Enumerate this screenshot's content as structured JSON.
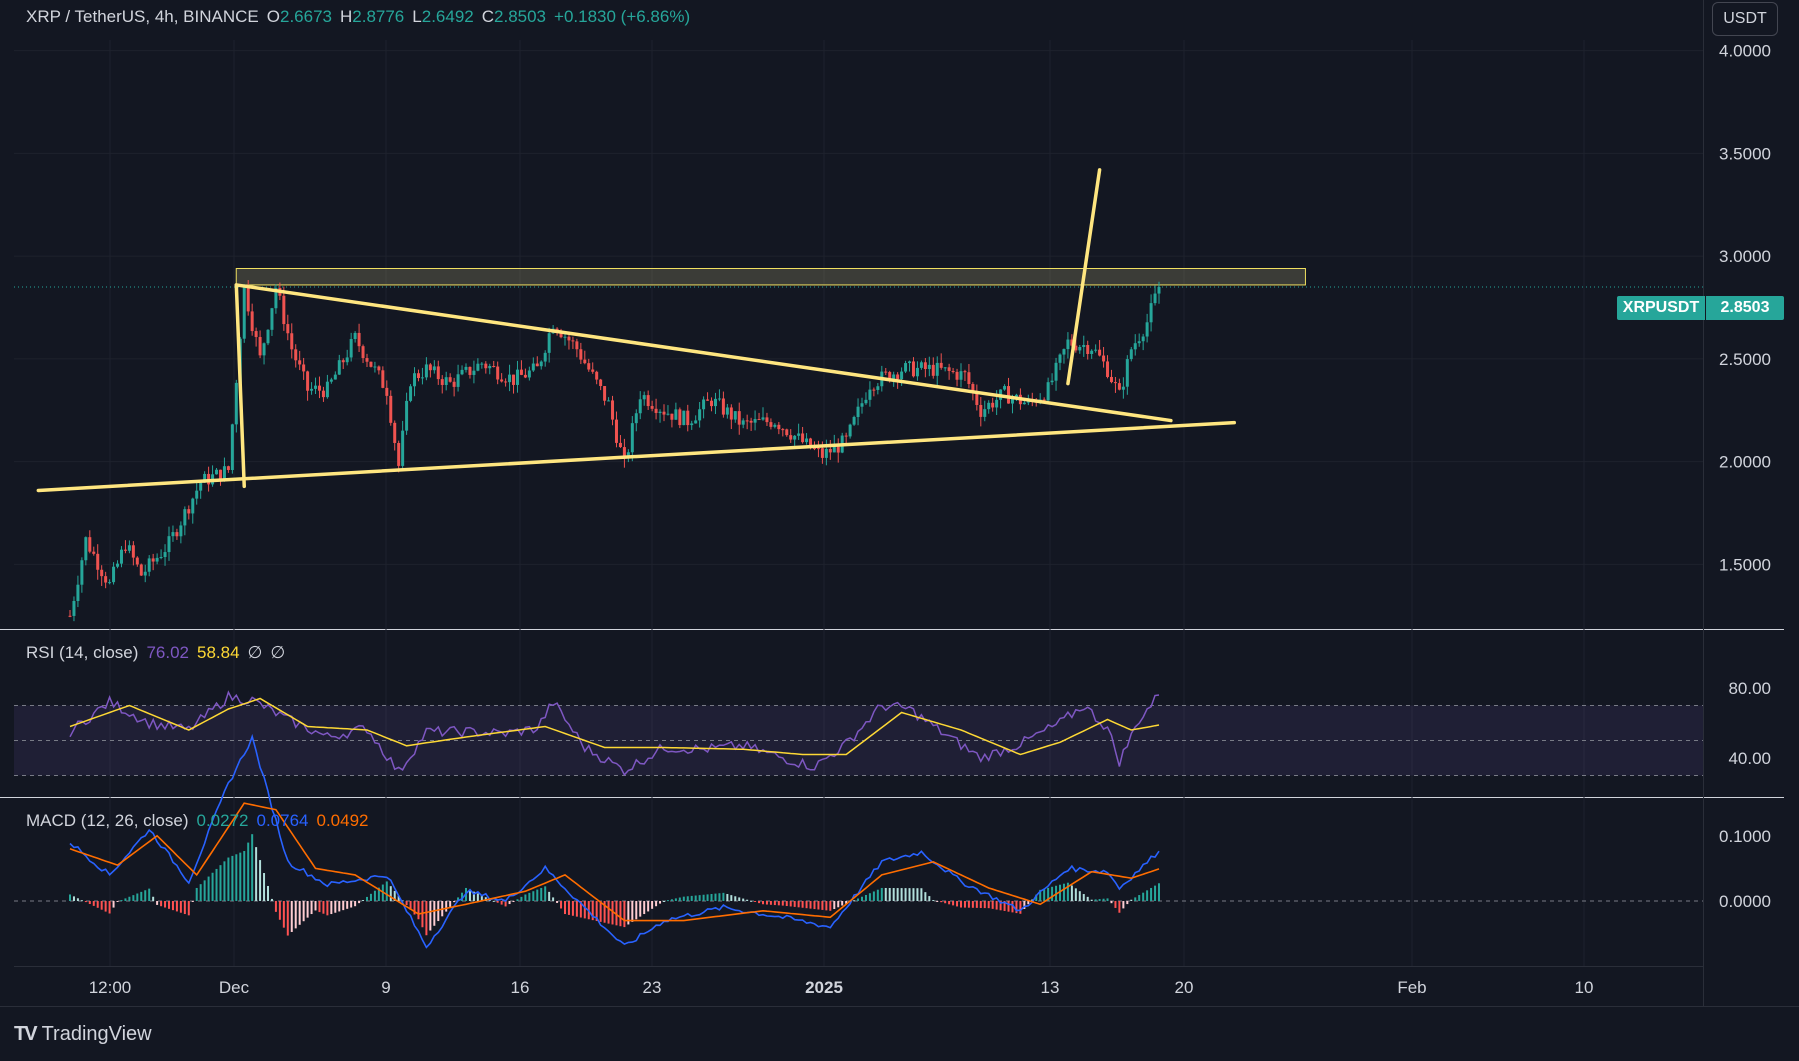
{
  "header": {
    "symbol_label": "XRP / TetherUS, 4h, BINANCE",
    "open_label": "O",
    "open_value": "2.6673",
    "high_label": "H",
    "high_value": "2.8776",
    "low_label": "L",
    "low_value": "2.6492",
    "close_label": "C",
    "close_value": "2.8503",
    "change_value": "+0.1830 (+6.86%)"
  },
  "currency_button": "USDT",
  "price_tag": {
    "symbol": "XRPUSDT",
    "price": "2.8503"
  },
  "rsi_legend": {
    "name": "RSI (14, close)",
    "value": "76.02",
    "ma_value": "58.84",
    "extra1": "∅",
    "extra2": "∅"
  },
  "macd_legend": {
    "name": "MACD (12, 26, close)",
    "hist": "0.0272",
    "macd": "0.0764",
    "signal": "0.0492"
  },
  "branding": {
    "name": "TradingView"
  },
  "colors": {
    "background": "#131722",
    "up": "#26a69a",
    "down": "#ef5350",
    "drawing": "#ffe680",
    "rsi": "#7e57c2",
    "rsi_ma": "#fdd835",
    "macd": "#2962ff",
    "signal": "#ff6d00"
  },
  "chart_data": [
    {
      "type": "candlestick",
      "title": "XRP / TetherUS, 4h, BINANCE",
      "y_axis": {
        "ticks": [
          "1.5000",
          "2.0000",
          "2.5000",
          "3.0000",
          "3.5000",
          "4.0000"
        ],
        "range": [
          1.2,
          4.3
        ]
      },
      "x_axis": {
        "ticks": [
          "12:00",
          "Dec",
          "9",
          "16",
          "23",
          "2025",
          "13",
          "20",
          "Feb",
          "10"
        ]
      },
      "last_price": 2.8503,
      "price_path": [
        [
          0,
          1.25
        ],
        [
          4,
          1.62
        ],
        [
          10,
          1.4
        ],
        [
          14,
          1.6
        ],
        [
          18,
          1.45
        ],
        [
          25,
          1.6
        ],
        [
          33,
          1.9
        ],
        [
          40,
          1.96
        ],
        [
          44,
          2.85
        ],
        [
          48,
          2.5
        ],
        [
          52,
          2.85
        ],
        [
          56,
          2.55
        ],
        [
          60,
          2.35
        ],
        [
          65,
          2.35
        ],
        [
          72,
          2.6
        ],
        [
          80,
          2.35
        ],
        [
          83,
          1.98
        ],
        [
          86,
          2.4
        ],
        [
          90,
          2.45
        ],
        [
          96,
          2.38
        ],
        [
          104,
          2.48
        ],
        [
          112,
          2.4
        ],
        [
          118,
          2.45
        ],
        [
          122,
          2.68
        ],
        [
          128,
          2.55
        ],
        [
          136,
          2.28
        ],
        [
          140,
          1.98
        ],
        [
          144,
          2.33
        ],
        [
          150,
          2.25
        ],
        [
          156,
          2.2
        ],
        [
          162,
          2.3
        ],
        [
          170,
          2.18
        ],
        [
          178,
          2.2
        ],
        [
          186,
          2.08
        ],
        [
          190,
          2.03
        ],
        [
          196,
          2.1
        ],
        [
          202,
          2.38
        ],
        [
          210,
          2.45
        ],
        [
          218,
          2.45
        ],
        [
          226,
          2.42
        ],
        [
          230,
          2.25
        ],
        [
          236,
          2.33
        ],
        [
          242,
          2.28
        ],
        [
          247,
          2.35
        ],
        [
          252,
          2.58
        ],
        [
          258,
          2.56
        ],
        [
          262,
          2.45
        ],
        [
          265,
          2.32
        ],
        [
          268,
          2.55
        ],
        [
          272,
          2.68
        ],
        [
          275,
          2.8503
        ]
      ],
      "drawings": [
        {
          "name": "resistance-zone",
          "price_range": [
            2.86,
            2.94
          ],
          "bar_range": [
            44,
            314
          ]
        },
        {
          "name": "upper-trendline",
          "points": [
            [
              42,
              2.86
            ],
            [
              278,
              2.2
            ]
          ]
        },
        {
          "name": "lower-trendline",
          "points": [
            [
              -8,
              1.86
            ],
            [
              294,
              2.19
            ]
          ]
        },
        {
          "name": "flagpole-left",
          "points": [
            [
              42,
              2.86
            ],
            [
              44,
              1.88
            ]
          ]
        },
        {
          "name": "projection-line",
          "points": [
            [
              252,
              2.38
            ],
            [
              260,
              3.42
            ]
          ]
        }
      ]
    },
    {
      "type": "line",
      "title": "RSI (14, close)",
      "y_axis": {
        "ticks": [
          "40.00",
          "80.00"
        ]
      },
      "bands": [
        30,
        50,
        70
      ],
      "rsi_path": [
        [
          0,
          55
        ],
        [
          10,
          72
        ],
        [
          20,
          60
        ],
        [
          30,
          56
        ],
        [
          40,
          75
        ],
        [
          46,
          73
        ],
        [
          55,
          62
        ],
        [
          65,
          52
        ],
        [
          75,
          57
        ],
        [
          83,
          32
        ],
        [
          90,
          55
        ],
        [
          100,
          55
        ],
        [
          110,
          54
        ],
        [
          118,
          57
        ],
        [
          122,
          72
        ],
        [
          130,
          46
        ],
        [
          140,
          33
        ],
        [
          150,
          46
        ],
        [
          160,
          45
        ],
        [
          170,
          47
        ],
        [
          180,
          40
        ],
        [
          188,
          35
        ],
        [
          196,
          48
        ],
        [
          205,
          70
        ],
        [
          212,
          68
        ],
        [
          220,
          55
        ],
        [
          230,
          40
        ],
        [
          240,
          48
        ],
        [
          250,
          60
        ],
        [
          256,
          70
        ],
        [
          262,
          57
        ],
        [
          265,
          38
        ],
        [
          270,
          62
        ],
        [
          275,
          76.02
        ]
      ],
      "ma_path": [
        [
          0,
          58
        ],
        [
          15,
          70
        ],
        [
          30,
          56
        ],
        [
          40,
          68
        ],
        [
          48,
          74
        ],
        [
          60,
          58
        ],
        [
          75,
          56
        ],
        [
          85,
          47
        ],
        [
          100,
          52
        ],
        [
          120,
          58
        ],
        [
          135,
          46
        ],
        [
          150,
          46
        ],
        [
          170,
          45
        ],
        [
          185,
          42
        ],
        [
          196,
          42
        ],
        [
          210,
          66
        ],
        [
          225,
          56
        ],
        [
          240,
          42
        ],
        [
          250,
          49
        ],
        [
          262,
          62
        ],
        [
          268,
          56
        ],
        [
          275,
          58.84
        ]
      ]
    },
    {
      "type": "bar",
      "title": "MACD (12, 26, close)",
      "y_axis": {
        "ticks": [
          "0.0000",
          "0.1000"
        ]
      },
      "macd_path": [
        [
          0,
          0.09
        ],
        [
          10,
          0.04
        ],
        [
          20,
          0.11
        ],
        [
          30,
          0.03
        ],
        [
          40,
          0.18
        ],
        [
          46,
          0.25
        ],
        [
          55,
          0.06
        ],
        [
          65,
          0.025
        ],
        [
          80,
          0.04
        ],
        [
          90,
          -0.07
        ],
        [
          100,
          0.015
        ],
        [
          110,
          0.0
        ],
        [
          120,
          0.05
        ],
        [
          140,
          -0.07
        ],
        [
          150,
          -0.03
        ],
        [
          165,
          -0.01
        ],
        [
          180,
          -0.025
        ],
        [
          192,
          -0.04
        ],
        [
          205,
          0.06
        ],
        [
          215,
          0.075
        ],
        [
          225,
          0.03
        ],
        [
          240,
          -0.015
        ],
        [
          252,
          0.05
        ],
        [
          262,
          0.045
        ],
        [
          265,
          0.02
        ],
        [
          275,
          0.0764
        ]
      ],
      "signal_path": [
        [
          0,
          0.08
        ],
        [
          12,
          0.055
        ],
        [
          22,
          0.1
        ],
        [
          32,
          0.04
        ],
        [
          44,
          0.15
        ],
        [
          52,
          0.14
        ],
        [
          62,
          0.05
        ],
        [
          72,
          0.04
        ],
        [
          88,
          -0.02
        ],
        [
          100,
          -0.005
        ],
        [
          115,
          0.015
        ],
        [
          125,
          0.04
        ],
        [
          140,
          -0.03
        ],
        [
          155,
          -0.03
        ],
        [
          175,
          -0.015
        ],
        [
          192,
          -0.025
        ],
        [
          205,
          0.04
        ],
        [
          218,
          0.06
        ],
        [
          232,
          0.02
        ],
        [
          245,
          -0.005
        ],
        [
          258,
          0.045
        ],
        [
          268,
          0.035
        ],
        [
          275,
          0.0492
        ]
      ]
    }
  ]
}
